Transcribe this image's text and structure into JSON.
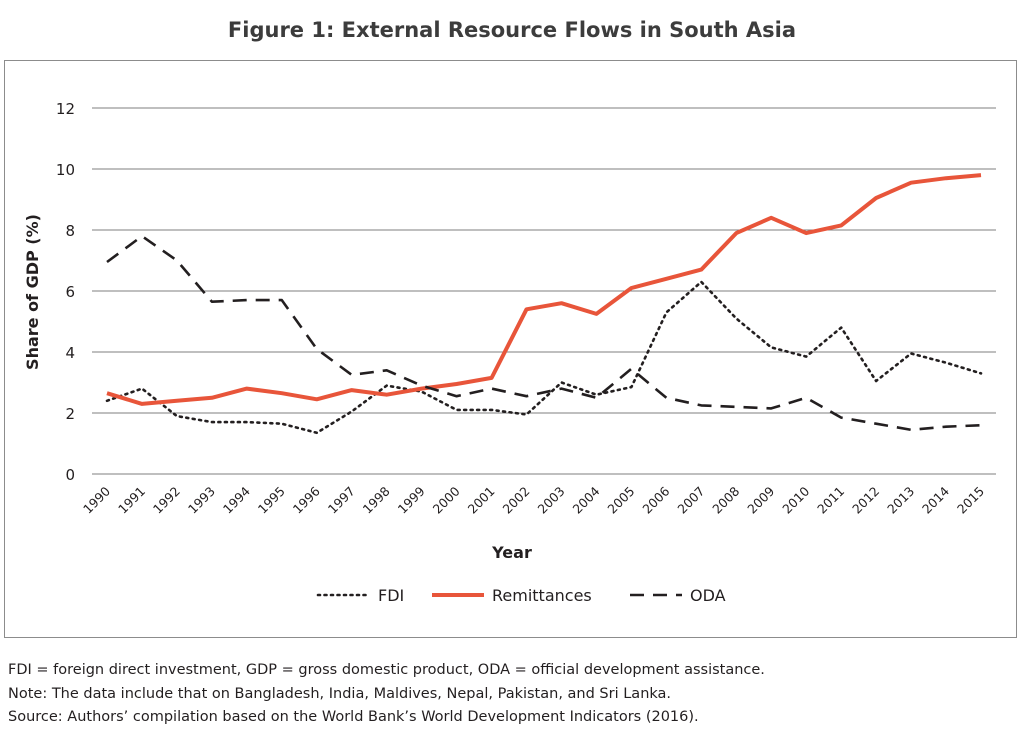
{
  "title": "Figure 1: External Resource Flows in South Asia",
  "notes": [
    "FDI = foreign direct investment, GDP = gross domestic product, ODA = official development assistance.",
    "Note: The data include that on Bangladesh, India, Maldives, Nepal, Pakistan, and Sri Lanka.",
    "Source: Authors’ compilation based on the World Bank’s World Development Indicators (2016)."
  ],
  "chart_data": {
    "type": "line",
    "xlabel": "Year",
    "ylabel": "Share of GDP (%)",
    "ylim": [
      0,
      12
    ],
    "yticks": [
      0,
      2,
      4,
      6,
      8,
      10,
      12
    ],
    "grid": true,
    "legend_position": "bottom",
    "categories": [
      "1990",
      "1991",
      "1992",
      "1993",
      "1994",
      "1995",
      "1996",
      "1997",
      "1998",
      "1999",
      "2000",
      "2001",
      "2002",
      "2003",
      "2004",
      "2005",
      "2006",
      "2007",
      "2008",
      "2009",
      "2010",
      "2011",
      "2012",
      "2013",
      "2014",
      "2015"
    ],
    "series": [
      {
        "name": "FDI",
        "style": "dotted",
        "color": "#231f20",
        "values": [
          2.4,
          2.8,
          1.9,
          1.7,
          1.7,
          1.65,
          1.35,
          2.05,
          2.9,
          2.7,
          2.1,
          2.1,
          1.95,
          3.0,
          2.6,
          2.85,
          5.3,
          6.3,
          5.1,
          4.15,
          3.85,
          4.8,
          3.05,
          3.95,
          3.65,
          3.3
        ]
      },
      {
        "name": "Remittances",
        "style": "solid",
        "color": "#e8553a",
        "values": [
          2.65,
          2.3,
          2.4,
          2.5,
          2.8,
          2.65,
          2.45,
          2.75,
          2.6,
          2.8,
          2.95,
          3.15,
          5.4,
          5.6,
          5.25,
          6.1,
          6.4,
          6.7,
          7.9,
          8.4,
          7.9,
          8.15,
          9.05,
          9.55,
          9.7,
          9.8
        ]
      },
      {
        "name": "ODA",
        "style": "dashed",
        "color": "#231f20",
        "values": [
          6.95,
          7.8,
          7.0,
          5.65,
          5.7,
          5.7,
          4.1,
          3.25,
          3.4,
          2.9,
          2.55,
          2.8,
          2.55,
          2.8,
          2.5,
          3.45,
          2.5,
          2.25,
          2.2,
          2.15,
          2.5,
          1.85,
          1.65,
          1.45,
          1.55,
          1.6
        ]
      }
    ]
  }
}
